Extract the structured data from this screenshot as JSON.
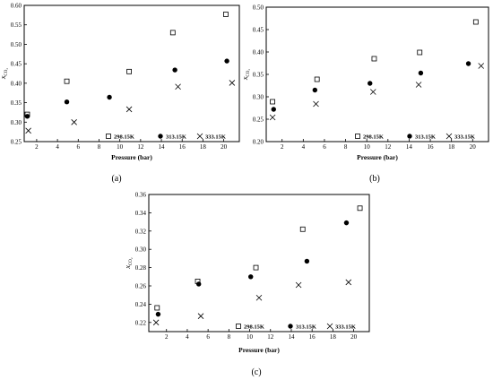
{
  "chart_data": [
    {
      "panel": "(a)",
      "type": "scatter",
      "xlabel": "Pressure (bar)",
      "ylabel": "x",
      "ylabel_sub": "CO2",
      "xlim": [
        0.8,
        21.5
      ],
      "ylim": [
        0.25,
        0.6
      ],
      "xticks": [
        2,
        4,
        6,
        8,
        10,
        12,
        14,
        16,
        18,
        20
      ],
      "yticks": [
        0.25,
        0.3,
        0.35,
        0.4,
        0.45,
        0.5,
        0.55,
        0.6
      ],
      "ytick_labels": [
        "0.25",
        "0.30",
        "0.35",
        "0.40",
        "0.45",
        "0.50",
        "0.55",
        "0.60"
      ],
      "legend_placement": "bottom-right",
      "series": [
        {
          "name": "298.15K",
          "marker": "square",
          "x": [
            1.1,
            4.9,
            10.9,
            15.1,
            20.2
          ],
          "y": [
            0.32,
            0.405,
            0.43,
            0.53,
            0.577
          ]
        },
        {
          "name": "313.15K",
          "marker": "circle",
          "x": [
            1.1,
            4.9,
            9.0,
            15.3,
            20.3
          ],
          "y": [
            0.315,
            0.352,
            0.364,
            0.434,
            0.457
          ]
        },
        {
          "name": "333.15K",
          "marker": "x",
          "x": [
            1.2,
            5.6,
            10.9,
            15.6,
            20.8
          ],
          "y": [
            0.278,
            0.3,
            0.333,
            0.391,
            0.401
          ]
        }
      ]
    },
    {
      "panel": "(b)",
      "type": "scatter",
      "xlabel": "Pressure (bar)",
      "ylabel": "x",
      "ylabel_sub": "CO2",
      "xlim": [
        0.5,
        21.5
      ],
      "ylim": [
        0.2,
        0.5
      ],
      "xticks": [
        2,
        4,
        6,
        8,
        10,
        12,
        14,
        16,
        18,
        20
      ],
      "yticks": [
        0.2,
        0.25,
        0.3,
        0.35,
        0.4,
        0.45,
        0.5
      ],
      "ytick_labels": [
        "0.20",
        "0.25",
        "0.30",
        "0.35",
        "0.40",
        "0.45",
        "0.50"
      ],
      "legend_placement": "bottom-right",
      "series": [
        {
          "name": "298.15K",
          "marker": "square",
          "x": [
            1.1,
            5.3,
            10.7,
            15.0,
            20.3
          ],
          "y": [
            0.289,
            0.339,
            0.385,
            0.399,
            0.467
          ]
        },
        {
          "name": "313.15K",
          "marker": "circle",
          "x": [
            1.2,
            5.1,
            10.3,
            15.1,
            19.6
          ],
          "y": [
            0.272,
            0.315,
            0.33,
            0.353,
            0.374
          ]
        },
        {
          "name": "333.15K",
          "marker": "x",
          "x": [
            1.1,
            5.2,
            10.6,
            14.9,
            20.8
          ],
          "y": [
            0.254,
            0.284,
            0.311,
            0.327,
            0.369
          ]
        }
      ]
    },
    {
      "panel": "(c)",
      "type": "scatter",
      "xlabel": "Pressure (bar)",
      "ylabel": "x",
      "ylabel_sub": "CO2",
      "xlim": [
        0.3,
        21.5
      ],
      "ylim": [
        0.21,
        0.36
      ],
      "xticks": [
        2,
        4,
        6,
        8,
        10,
        12,
        14,
        16,
        18,
        20
      ],
      "yticks": [
        0.22,
        0.24,
        0.26,
        0.28,
        0.3,
        0.32,
        0.34,
        0.36
      ],
      "ytick_labels": [
        "0.22",
        "0.24",
        "0.26",
        "0.28",
        "0.30",
        "0.32",
        "0.34",
        "0.36"
      ],
      "legend_placement": "bottom-right",
      "series": [
        {
          "name": "298.15K",
          "marker": "square",
          "x": [
            1.1,
            5.0,
            10.6,
            15.1,
            20.6
          ],
          "y": [
            0.236,
            0.265,
            0.28,
            0.322,
            0.345
          ]
        },
        {
          "name": "313.15K",
          "marker": "circle",
          "x": [
            1.2,
            5.1,
            10.1,
            15.5,
            19.3
          ],
          "y": [
            0.229,
            0.262,
            0.27,
            0.287,
            0.329
          ]
        },
        {
          "name": "333.15K",
          "marker": "x",
          "x": [
            1.0,
            5.3,
            10.9,
            14.7,
            19.5
          ],
          "y": [
            0.22,
            0.227,
            0.247,
            0.261,
            0.264
          ]
        }
      ]
    }
  ]
}
